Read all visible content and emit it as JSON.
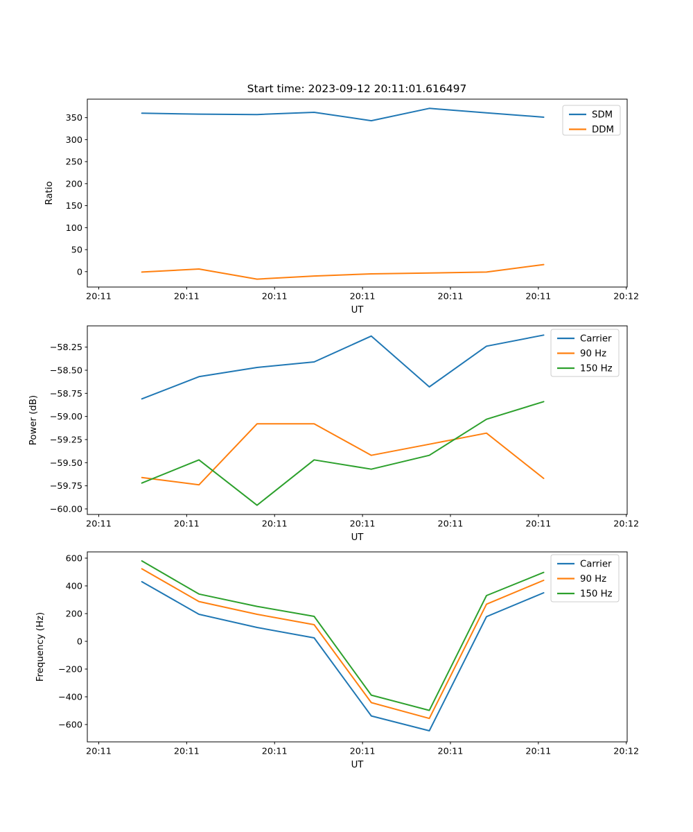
{
  "figure": {
    "title": "Start time: 2023-09-12 20:11:01.616497"
  },
  "colors": {
    "blue": "#1f77b4",
    "orange": "#ff7f0e",
    "green": "#2ca02c",
    "axis": "#000000",
    "legend_border": "#cccccc",
    "background": "#ffffff"
  },
  "chart_data": [
    {
      "type": "line",
      "id": "ratio",
      "ylabel": "Ratio",
      "xlabel": "UT",
      "x_seconds": [
        4.9,
        11.4,
        18.0,
        24.5,
        31.0,
        37.6,
        44.1,
        50.6
      ],
      "xlim": [
        -1.3,
        60.1
      ],
      "xtick_values": [
        0,
        10,
        20,
        30,
        40,
        50,
        60
      ],
      "xtick_labels": [
        "20:11",
        "20:11",
        "20:11",
        "20:11",
        "20:11",
        "20:11",
        "20:12"
      ],
      "ylim": [
        -35,
        392
      ],
      "ytick_values": [
        0,
        50,
        100,
        150,
        200,
        250,
        300,
        350
      ],
      "ytick_labels": [
        "0",
        "50",
        "100",
        "150",
        "200",
        "250",
        "300",
        "350"
      ],
      "grid": false,
      "legend_loc": "upper right",
      "series": [
        {
          "name": "SDM",
          "color": "#1f77b4",
          "values": [
            360,
            358,
            357,
            362,
            343,
            371,
            361,
            351
          ]
        },
        {
          "name": "DDM",
          "color": "#ff7f0e",
          "values": [
            -1,
            6,
            -17,
            -10,
            -5,
            -3,
            -1,
            16
          ]
        }
      ]
    },
    {
      "type": "line",
      "id": "power",
      "ylabel": "Power (dB)",
      "xlabel": "UT",
      "x_seconds": [
        4.9,
        11.4,
        18.0,
        24.5,
        31.0,
        37.6,
        44.1,
        50.6
      ],
      "xlim": [
        -1.3,
        60.1
      ],
      "xtick_values": [
        0,
        10,
        20,
        30,
        40,
        50,
        60
      ],
      "xtick_labels": [
        "20:11",
        "20:11",
        "20:11",
        "20:11",
        "20:11",
        "20:11",
        "20:12"
      ],
      "ylim": [
        -60.06,
        -58.02
      ],
      "ytick_values": [
        -58.25,
        -58.5,
        -58.75,
        -59.0,
        -59.25,
        -59.5,
        -59.75,
        -60.0
      ],
      "ytick_labels": [
        "−58.25",
        "−58.50",
        "−58.75",
        "−59.00",
        "−59.25",
        "−59.50",
        "−59.75",
        "−60.00"
      ],
      "grid": false,
      "legend_loc": "upper right",
      "series": [
        {
          "name": "Carrier",
          "color": "#1f77b4",
          "values": [
            -58.81,
            -58.57,
            -58.47,
            -58.41,
            -58.13,
            -58.68,
            -58.24,
            -58.12
          ]
        },
        {
          "name": "90 Hz",
          "color": "#ff7f0e",
          "values": [
            -59.66,
            -59.74,
            -59.08,
            -59.08,
            -59.42,
            -59.3,
            -59.18,
            -59.67
          ]
        },
        {
          "name": "150 Hz",
          "color": "#2ca02c",
          "values": [
            -59.72,
            -59.47,
            -59.96,
            -59.47,
            -59.57,
            -59.42,
            -59.03,
            -58.84
          ]
        }
      ]
    },
    {
      "type": "line",
      "id": "frequency",
      "ylabel": "Frequency (Hz)",
      "xlabel": "UT",
      "x_seconds": [
        4.9,
        11.4,
        18.0,
        24.5,
        31.0,
        37.6,
        44.1,
        50.6
      ],
      "xlim": [
        -1.3,
        60.1
      ],
      "xtick_values": [
        0,
        10,
        20,
        30,
        40,
        50,
        60
      ],
      "xtick_labels": [
        "20:11",
        "20:11",
        "20:11",
        "20:11",
        "20:11",
        "20:11",
        "20:12"
      ],
      "ylim": [
        -725,
        645
      ],
      "ytick_values": [
        600,
        400,
        200,
        0,
        -200,
        -400,
        -600
      ],
      "ytick_labels": [
        "600",
        "400",
        "200",
        "0",
        "−200",
        "−400",
        "−600"
      ],
      "grid": false,
      "legend_loc": "upper right",
      "series": [
        {
          "name": "Carrier",
          "color": "#1f77b4",
          "values": [
            430,
            195,
            100,
            25,
            -538,
            -645,
            178,
            350
          ]
        },
        {
          "name": "90 Hz",
          "color": "#ff7f0e",
          "values": [
            523,
            287,
            195,
            120,
            -442,
            -556,
            268,
            440
          ]
        },
        {
          "name": "150 Hz",
          "color": "#2ca02c",
          "values": [
            580,
            341,
            252,
            180,
            -388,
            -498,
            330,
            497
          ]
        }
      ]
    }
  ]
}
